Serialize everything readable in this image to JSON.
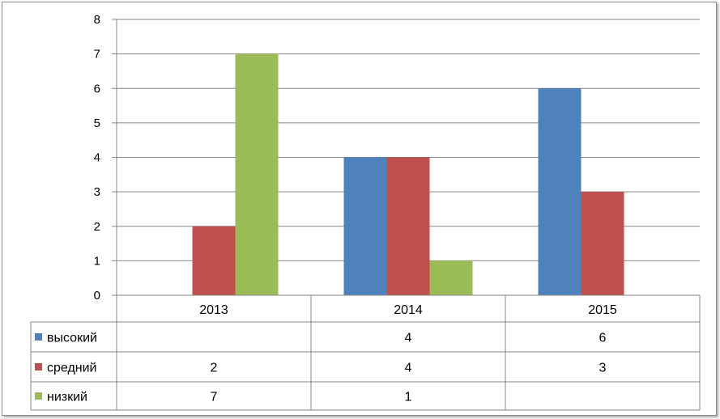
{
  "chart_data": {
    "type": "bar",
    "categories": [
      "2013",
      "2014",
      "2015"
    ],
    "series": [
      {
        "name": "высокий",
        "color": "#4f81bd",
        "values": [
          null,
          4,
          6
        ],
        "cells": [
          "",
          "4",
          "6"
        ]
      },
      {
        "name": "средний",
        "color": "#c0504d",
        "values": [
          2,
          4,
          3
        ],
        "cells": [
          "2",
          "4",
          "3"
        ]
      },
      {
        "name": "низкий",
        "color": "#9bbb59",
        "values": [
          7,
          1,
          null
        ],
        "cells": [
          "7",
          "1",
          ""
        ]
      }
    ],
    "ylim": [
      0,
      8
    ],
    "yticks": [
      "0",
      "1",
      "2",
      "3",
      "4",
      "5",
      "6",
      "7",
      "8"
    ],
    "grid": true,
    "legend": "data-table"
  }
}
